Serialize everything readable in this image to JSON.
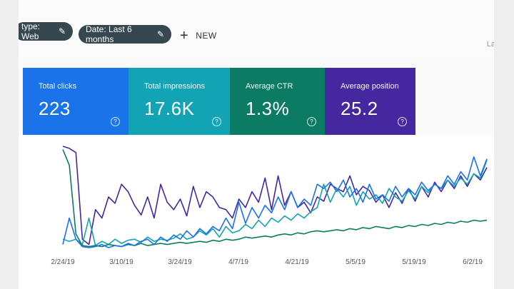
{
  "toolbar": {
    "type_filter_label": "type: Web",
    "date_filter_label": "Date: Last 6 months",
    "new_label": "NEW",
    "edge_text": "La",
    "pencil_glyph": "✎"
  },
  "metrics": [
    {
      "label": "Total clicks",
      "value": "223",
      "color": "#1a73e8"
    },
    {
      "label": "Total impressions",
      "value": "17.6K",
      "color": "#12a4b4"
    },
    {
      "label": "Average CTR",
      "value": "1.3%",
      "color": "#0b7c63"
    },
    {
      "label": "Average position",
      "value": "25.2",
      "color": "#4527a0"
    }
  ],
  "help_glyph": "?",
  "chart_data": {
    "type": "line",
    "x_ticks": [
      "2/24/19",
      "3/10/19",
      "3/24/19",
      "4/7/19",
      "4/21/19",
      "5/5/19",
      "5/19/19",
      "6/2/19"
    ],
    "ylim": [
      0,
      100
    ],
    "grid": false,
    "series": [
      {
        "color": "#4527a0",
        "values": [
          98,
          96,
          92,
          10,
          5,
          38,
          30,
          50,
          44,
          62,
          55,
          42,
          33,
          50,
          30,
          62,
          45,
          38,
          48,
          32,
          60,
          40,
          55,
          50,
          40,
          38,
          30,
          48,
          40,
          55,
          45,
          68,
          38,
          70,
          42,
          55,
          40,
          45,
          35,
          50,
          46,
          62,
          58,
          55,
          70,
          52,
          60,
          56,
          45,
          52,
          40,
          54,
          44,
          58,
          46,
          60,
          50,
          64,
          55,
          66,
          58,
          70,
          60,
          72,
          66,
          78
        ]
      },
      {
        "color": "#12a4b4",
        "values": [
          10,
          8,
          10,
          5,
          30,
          4,
          8,
          5,
          10,
          6,
          9,
          10,
          7,
          12,
          8,
          10,
          9,
          11,
          15,
          10,
          12,
          18,
          14,
          20,
          12,
          22,
          16,
          18,
          24,
          20,
          28,
          22,
          30,
          26,
          32,
          28,
          34,
          30,
          36,
          40,
          62,
          45,
          58,
          50,
          60,
          42,
          55,
          48,
          52,
          44,
          58,
          50,
          46,
          56,
          48,
          60,
          54,
          62,
          58,
          66,
          60,
          68,
          62,
          72,
          68,
          85
        ]
      },
      {
        "color": "#0b7c63",
        "values": [
          95,
          80,
          15,
          4,
          3,
          4,
          3,
          5,
          4,
          3,
          5,
          4,
          6,
          4,
          5,
          6,
          5,
          6,
          7,
          6,
          7,
          8,
          7,
          9,
          8,
          10,
          9,
          10,
          12,
          11,
          12,
          13,
          12,
          14,
          15,
          14,
          16,
          15,
          17,
          18,
          17,
          18,
          19,
          18,
          20,
          19,
          21,
          20,
          22,
          21,
          20,
          22,
          21,
          23,
          22,
          24,
          23,
          25,
          24,
          26,
          25,
          27,
          26,
          28,
          27,
          28
        ]
      },
      {
        "color": "#1a73e8",
        "values": [
          5,
          30,
          10,
          3,
          2,
          3,
          5,
          2,
          4,
          3,
          6,
          4,
          8,
          10,
          5,
          12,
          8,
          14,
          10,
          18,
          12,
          20,
          15,
          22,
          18,
          30,
          20,
          45,
          25,
          40,
          30,
          42,
          35,
          50,
          38,
          55,
          40,
          48,
          42,
          62,
          58,
          64,
          55,
          66,
          50,
          58,
          45,
          62,
          48,
          52,
          46,
          60,
          50,
          58,
          52,
          64,
          56,
          62,
          58,
          70,
          62,
          74,
          66,
          88,
          70,
          86
        ]
      }
    ]
  }
}
